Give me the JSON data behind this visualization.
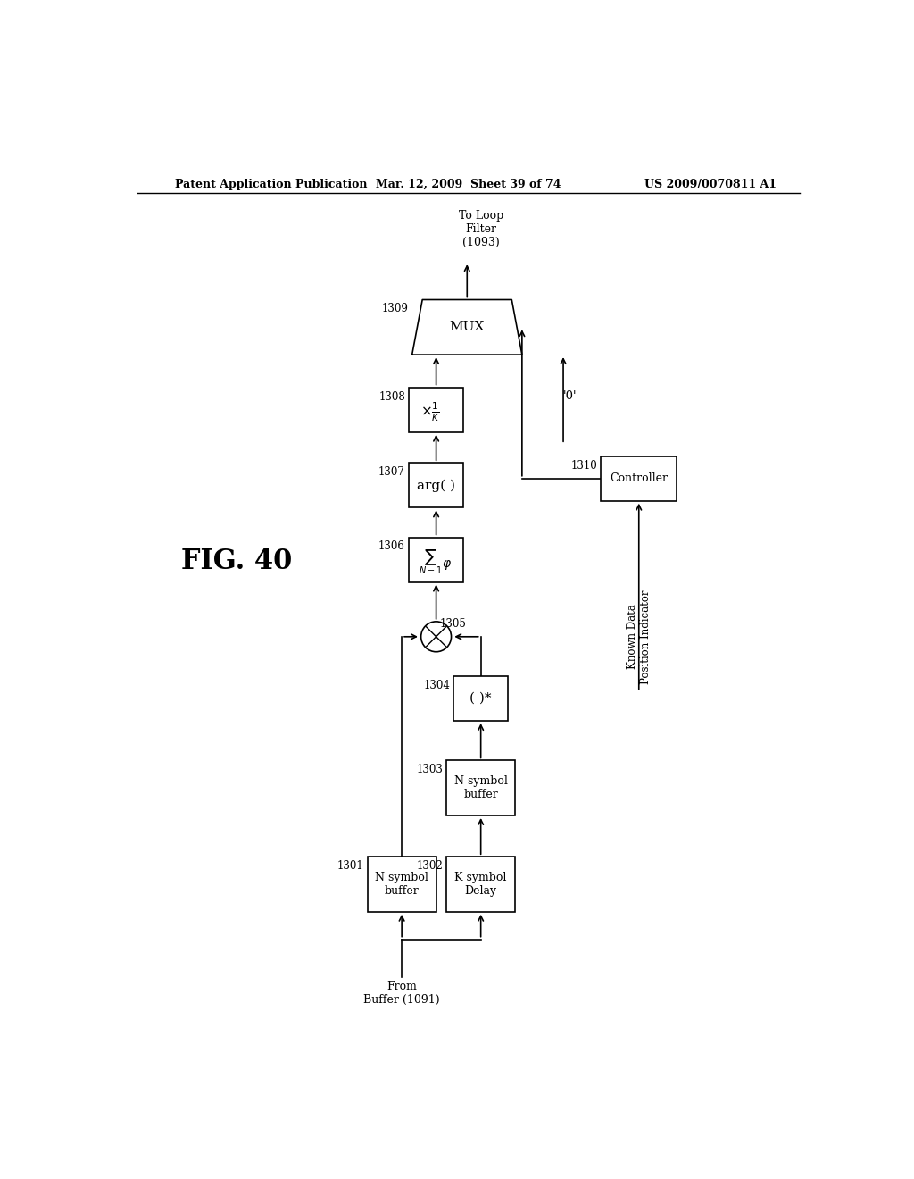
{
  "title_left": "Patent Application Publication",
  "title_mid": "Mar. 12, 2009  Sheet 39 of 74",
  "title_right": "US 2009/0070811 A1",
  "fig_label": "FIG. 40",
  "background_color": "#ffffff"
}
